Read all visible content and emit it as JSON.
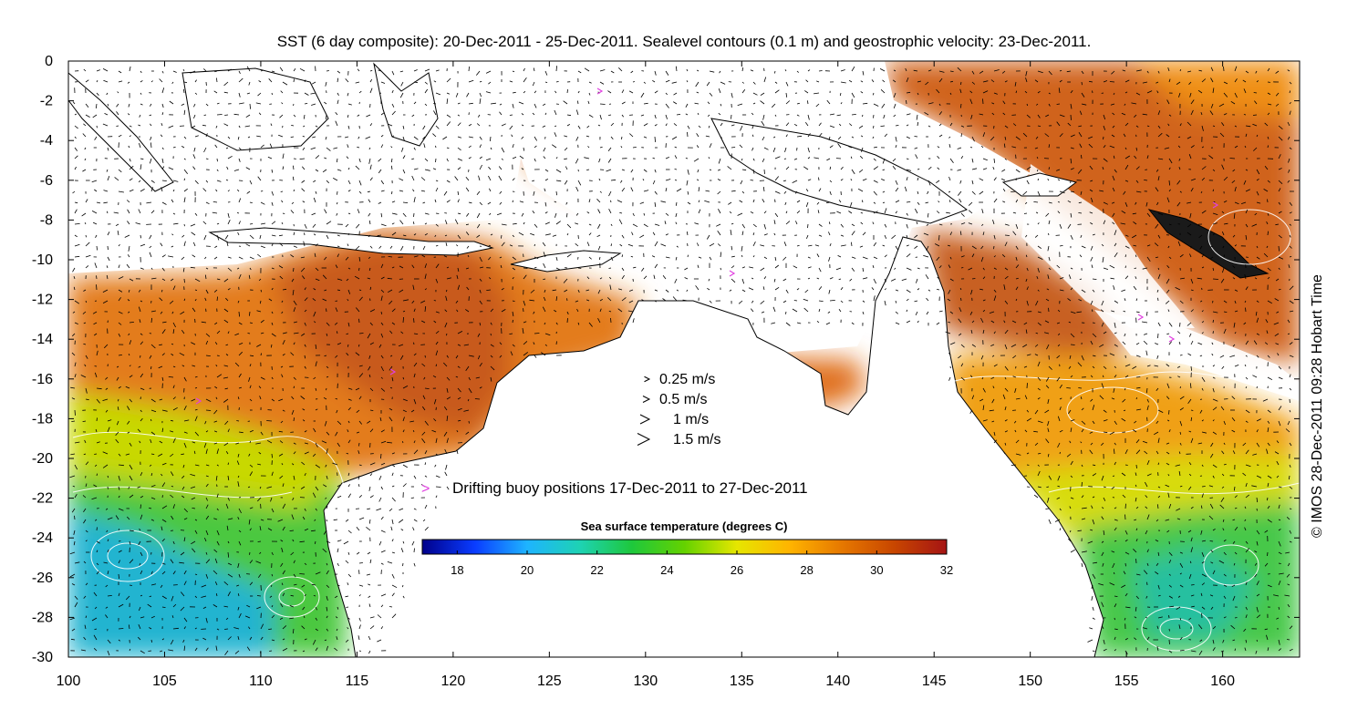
{
  "title": "SST (6 day composite): 20-Dec-2011 - 25-Dec-2011. Sealevel contours (0.1 m) and geostrophic velocity: 23-Dec-2011.",
  "credit": "© IMOS 28-Dec-2011 09:28 Hobart Time",
  "axes": {
    "x_ticks": [
      "100",
      "105",
      "110",
      "115",
      "120",
      "125",
      "130",
      "135",
      "140",
      "145",
      "150",
      "155",
      "160"
    ],
    "y_ticks": [
      "0",
      "-2",
      "-4",
      "-6",
      "-8",
      "-10",
      "-12",
      "-14",
      "-16",
      "-18",
      "-20",
      "-22",
      "-24",
      "-26",
      "-28",
      "-30"
    ],
    "x_range": [
      100,
      164
    ],
    "y_range": [
      -30,
      0
    ]
  },
  "velocity_legend": [
    {
      "label": "0.25 m/s",
      "speed": 0.25
    },
    {
      "label": "0.5 m/s",
      "speed": 0.5
    },
    {
      "label": "1 m/s",
      "speed": 1
    },
    {
      "label": "1.5 m/s",
      "speed": 1.5
    }
  ],
  "buoy_legend": {
    "label": "Drifting buoy positions 17-Dec-2011 to 27-Dec-2011",
    "color": "#e040e0",
    "marker": ">"
  },
  "colorbar": {
    "title": "Sea surface temperature (degrees C)",
    "ticks": [
      "18",
      "20",
      "22",
      "24",
      "26",
      "28",
      "30",
      "32"
    ],
    "range": [
      17,
      32
    ],
    "colors": [
      "#00008b",
      "#0a3cff",
      "#1eb4ff",
      "#1ed2b4",
      "#1ec83c",
      "#64d200",
      "#e6e600",
      "#ffb400",
      "#e67800",
      "#c84600",
      "#a51414"
    ]
  },
  "colors": {
    "land": "#ffffff",
    "warm_sst": "#d2641e",
    "mid_sst": "#f0a014",
    "cool_sst": "#4ec844",
    "cold_sst": "#20b4d8",
    "contours": "#ffffff",
    "coastline": "#000000"
  }
}
